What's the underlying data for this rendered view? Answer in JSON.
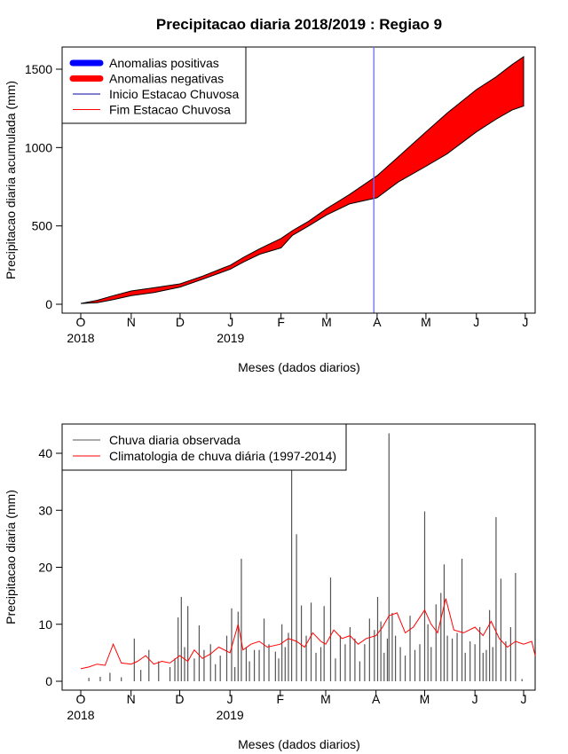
{
  "chart_data": [
    {
      "type": "area",
      "title": "Precipitacao diaria 2018/2019 : Regiao 9",
      "xlabel": "Meses (dados diarios)",
      "ylabel": "Precipitacao diaria acumulada (mm)",
      "ylim": [
        0,
        1600
      ],
      "yticks": [
        0,
        500,
        1000,
        1500
      ],
      "xlim": [
        0,
        272
      ],
      "x_ticks": [
        {
          "day": 0,
          "label": "O"
        },
        {
          "day": 31,
          "label": "N"
        },
        {
          "day": 61,
          "label": "D"
        },
        {
          "day": 92,
          "label": "J"
        },
        {
          "day": 123,
          "label": "F"
        },
        {
          "day": 151,
          "label": "M"
        },
        {
          "day": 182,
          "label": "A"
        },
        {
          "day": 212,
          "label": "M"
        },
        {
          "day": 243,
          "label": "J"
        },
        {
          "day": 273,
          "label": "J"
        }
      ],
      "year_labels": [
        {
          "day": 0,
          "label": "2018"
        },
        {
          "day": 92,
          "label": "2019"
        }
      ],
      "legend": {
        "position": "top-left",
        "entries": [
          {
            "label": "Anomalias positivas",
            "color": "#0000ff",
            "style": "thick"
          },
          {
            "label": "Anomalias negativas",
            "color": "#ff0000",
            "style": "thick"
          },
          {
            "label": "Inicio Estacao Chuvosa",
            "color": "#0000aa",
            "style": "thin"
          },
          {
            "label": "Fim Estacao Chuvosa",
            "color": "#ff0000",
            "style": "thin"
          }
        ]
      },
      "rainy_season_start_day": 180,
      "series": [
        {
          "name": "Climatologia",
          "x": [
            0,
            10,
            20,
            31,
            45,
            61,
            75,
            92,
            100,
            110,
            123,
            130,
            140,
            151,
            165,
            182,
            195,
            212,
            225,
            243,
            255,
            265,
            272
          ],
          "values": [
            5,
            25,
            55,
            85,
            105,
            130,
            180,
            250,
            300,
            355,
            420,
            470,
            530,
            610,
            700,
            820,
            940,
            1100,
            1220,
            1370,
            1450,
            1530,
            1580
          ]
        },
        {
          "name": "Observada",
          "x": [
            0,
            10,
            20,
            31,
            45,
            61,
            75,
            92,
            100,
            110,
            123,
            130,
            140,
            151,
            165,
            182,
            195,
            212,
            225,
            243,
            255,
            265,
            272
          ],
          "values": [
            5,
            10,
            30,
            55,
            75,
            110,
            160,
            225,
            270,
            320,
            360,
            440,
            500,
            570,
            640,
            680,
            780,
            880,
            960,
            1100,
            1180,
            1240,
            1265
          ]
        }
      ],
      "fill_color": "#ff0000"
    },
    {
      "type": "bar",
      "xlabel": "Meses (dados diarios)",
      "ylabel": "Precipitacao diaria (mm)",
      "ylim": [
        0,
        45
      ],
      "yticks": [
        0,
        10,
        20,
        30,
        40
      ],
      "xlim": [
        0,
        282
      ],
      "x_ticks": [
        {
          "day": 0,
          "label": "O"
        },
        {
          "day": 31,
          "label": "N"
        },
        {
          "day": 61,
          "label": "D"
        },
        {
          "day": 92,
          "label": "J"
        },
        {
          "day": 123,
          "label": "F"
        },
        {
          "day": 151,
          "label": "M"
        },
        {
          "day": 182,
          "label": "A"
        },
        {
          "day": 212,
          "label": "M"
        },
        {
          "day": 243,
          "label": "J"
        },
        {
          "day": 273,
          "label": "J"
        }
      ],
      "year_labels": [
        {
          "day": 0,
          "label": "2018"
        },
        {
          "day": 92,
          "label": "2019"
        }
      ],
      "legend": {
        "position": "top-left",
        "entries": [
          {
            "label": "Chuva diaria observada",
            "color": "#555555"
          },
          {
            "label": "Climatologia de chuva diária (1997-2014)",
            "color": "#ff0000"
          }
        ]
      },
      "observed_series": {
        "name": "Chuva diaria observada",
        "color": "#555555",
        "x": [
          5,
          12,
          18,
          25,
          33,
          37,
          42,
          48,
          55,
          58,
          60,
          62,
          64,
          66,
          70,
          73,
          76,
          80,
          83,
          86,
          90,
          93,
          95,
          97,
          99,
          102,
          104,
          107,
          110,
          113,
          116,
          120,
          122,
          124,
          126,
          128,
          130,
          133,
          136,
          139,
          142,
          145,
          148,
          150,
          154,
          157,
          160,
          163,
          166,
          169,
          172,
          175,
          178,
          181,
          183,
          185,
          187,
          189,
          190,
          192,
          194,
          197,
          200,
          203,
          206,
          209,
          212,
          214,
          216,
          219,
          222,
          224,
          226,
          229,
          232,
          235,
          237,
          240,
          243,
          246,
          248,
          250,
          252,
          254,
          256,
          259,
          262,
          265,
          268,
          272
        ],
        "values": [
          0.6,
          0.8,
          1.5,
          0.7,
          7.5,
          2.0,
          5.5,
          3.5,
          2.5,
          4.0,
          11.2,
          14.8,
          6.0,
          13.2,
          4.0,
          9.8,
          5.5,
          6.5,
          3.0,
          4.5,
          8.0,
          12.8,
          2.5,
          12.2,
          21.5,
          6.0,
          3.5,
          5.5,
          5.5,
          11.0,
          6.5,
          5.2,
          4.0,
          10.0,
          6.0,
          8.5,
          37.5,
          25.8,
          13.3,
          8.0,
          13.8,
          5.0,
          6.0,
          13.2,
          18.2,
          4.0,
          8.0,
          6.5,
          9.5,
          7.5,
          3.5,
          6.5,
          11.0,
          9.0,
          14.8,
          10.5,
          5.0,
          7.5,
          43.5,
          12.0,
          8.0,
          6.0,
          4.5,
          11.5,
          5.5,
          6.5,
          29.8,
          10.0,
          6.0,
          13.5,
          15.5,
          20.5,
          8.0,
          7.5,
          8.5,
          21.5,
          5.0,
          7.0,
          6.5,
          9.5,
          5.0,
          5.5,
          12.5,
          6.0,
          28.8,
          18.0,
          7.0,
          9.5,
          19.0,
          0.4
        ]
      },
      "climatology_series": {
        "name": "Climatologia de chuva diária (1997-2014)",
        "color": "#ff0000",
        "x": [
          0,
          5,
          10,
          15,
          20,
          25,
          31,
          35,
          40,
          45,
          50,
          55,
          61,
          66,
          70,
          75,
          80,
          85,
          92,
          97,
          100,
          105,
          110,
          115,
          123,
          128,
          133,
          138,
          143,
          148,
          151,
          156,
          161,
          166,
          171,
          176,
          182,
          186,
          190,
          195,
          200,
          205,
          212,
          216,
          220,
          225,
          230,
          236,
          243,
          248,
          253,
          258,
          263,
          268,
          273,
          278,
          282
        ],
        "values": [
          2.2,
          2.5,
          3.0,
          2.8,
          6.5,
          3.2,
          3.0,
          3.5,
          4.5,
          3.0,
          3.5,
          3.2,
          4.5,
          3.5,
          5.5,
          4.0,
          4.8,
          6.0,
          5.0,
          10.0,
          5.5,
          6.5,
          7.0,
          6.0,
          6.5,
          7.5,
          7.0,
          6.0,
          8.5,
          7.0,
          6.5,
          9.0,
          7.5,
          8.0,
          6.5,
          7.5,
          8.0,
          9.5,
          11.5,
          12.0,
          8.5,
          9.5,
          12.5,
          10.0,
          8.5,
          14.5,
          9.0,
          8.5,
          9.5,
          8.0,
          10.5,
          7.5,
          6.0,
          7.0,
          6.5,
          7.0,
          4.5
        ]
      }
    }
  ]
}
